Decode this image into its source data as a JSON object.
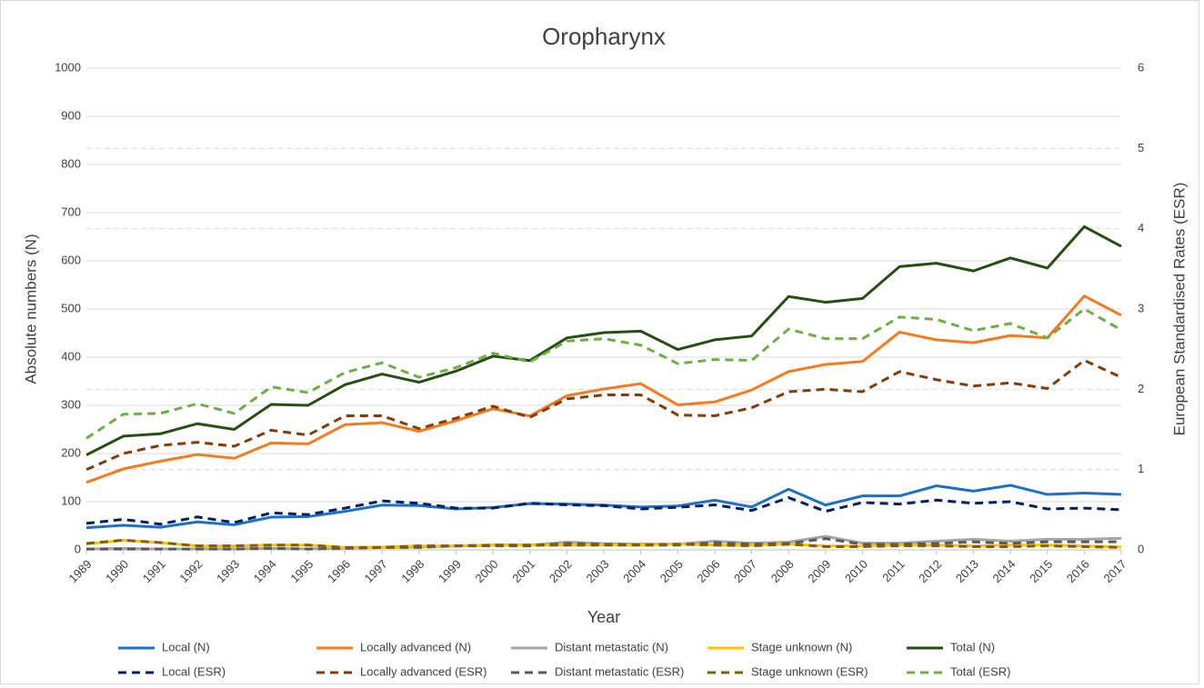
{
  "chart_data": {
    "type": "line",
    "title": "Oropharynx",
    "x_label": "Year",
    "y_label": "Absolute numbers (N)",
    "y2_label": "European Standardised Rates (ESR)",
    "categories": [
      "1989",
      "1990",
      "1991",
      "1992",
      "1993",
      "1994",
      "1995",
      "1996",
      "1997",
      "1998",
      "1999",
      "2000",
      "2001",
      "2002",
      "2003",
      "2004",
      "2005",
      "2006",
      "2007",
      "2008",
      "2009",
      "2010",
      "2011",
      "2012",
      "2013",
      "2014",
      "2015",
      "2016",
      "2017"
    ],
    "ylim": [
      0,
      1000
    ],
    "yticks": [
      0,
      100,
      200,
      300,
      400,
      500,
      600,
      700,
      800,
      900,
      1000
    ],
    "y2lim": [
      0,
      6
    ],
    "y2ticks": [
      0,
      1,
      2,
      3,
      4,
      5,
      6
    ],
    "grid": true,
    "legend": "bottom",
    "series": [
      {
        "name": "Local (N)",
        "color": "#1f6fc5",
        "linestyle": "solid",
        "values": [
          46,
          51,
          47,
          58,
          52,
          68,
          69,
          80,
          93,
          92,
          85,
          88,
          96,
          95,
          93,
          89,
          91,
          103,
          89,
          126,
          93,
          112,
          112,
          133,
          122,
          134,
          115,
          118,
          115
        ]
      },
      {
        "name": "Locally advanced (N)",
        "color": "#f47b20",
        "linestyle": "solid",
        "values": [
          140,
          168,
          184,
          198,
          190,
          222,
          220,
          260,
          264,
          246,
          268,
          293,
          278,
          320,
          334,
          345,
          301,
          307,
          332,
          370,
          385,
          391,
          452,
          436,
          430,
          445,
          440,
          527,
          487
        ]
      },
      {
        "name": "Distant metastatic (N)",
        "color": "#a5a5a5",
        "linestyle": "solid",
        "values": [
          2,
          3,
          2,
          2,
          2,
          3,
          2,
          4,
          5,
          6,
          8,
          10,
          10,
          16,
          13,
          12,
          12,
          18,
          14,
          16,
          28,
          14,
          14,
          18,
          22,
          18,
          22,
          22,
          24
        ]
      },
      {
        "name": "Stage unknown (N)",
        "color": "#ffc000",
        "linestyle": "solid",
        "values": [
          12,
          20,
          15,
          8,
          8,
          10,
          10,
          5,
          6,
          8,
          8,
          10,
          10,
          10,
          10,
          10,
          12,
          10,
          10,
          12,
          8,
          8,
          10,
          10,
          8,
          10,
          10,
          8,
          6
        ]
      },
      {
        "name": "Total (N)",
        "color": "#274e13",
        "linestyle": "solid",
        "values": [
          197,
          236,
          241,
          262,
          250,
          302,
          300,
          343,
          365,
          348,
          371,
          402,
          393,
          440,
          451,
          454,
          416,
          436,
          444,
          526,
          514,
          522,
          588,
          595,
          579,
          606,
          585,
          671,
          630
        ]
      },
      {
        "name": "Local (ESR)",
        "color": "#002060",
        "linestyle": "dashed",
        "axis": "y2",
        "values": [
          0.33,
          0.38,
          0.32,
          0.41,
          0.34,
          0.46,
          0.44,
          0.52,
          0.61,
          0.58,
          0.52,
          0.52,
          0.58,
          0.56,
          0.55,
          0.51,
          0.53,
          0.56,
          0.49,
          0.65,
          0.48,
          0.59,
          0.57,
          0.62,
          0.58,
          0.6,
          0.51,
          0.52,
          0.5
        ]
      },
      {
        "name": "Locally advanced (ESR)",
        "color": "#843c0c",
        "linestyle": "dashed",
        "axis": "y2",
        "values": [
          1.0,
          1.2,
          1.3,
          1.34,
          1.29,
          1.49,
          1.43,
          1.67,
          1.67,
          1.51,
          1.64,
          1.79,
          1.65,
          1.88,
          1.93,
          1.93,
          1.68,
          1.67,
          1.77,
          1.97,
          2.0,
          1.97,
          2.22,
          2.12,
          2.04,
          2.08,
          2.01,
          2.36,
          2.15
        ]
      },
      {
        "name": "Distant metastatic (ESR)",
        "color": "#595959",
        "linestyle": "dashed",
        "axis": "y2",
        "values": [
          0.01,
          0.01,
          0.01,
          0.01,
          0.01,
          0.02,
          0.01,
          0.02,
          0.03,
          0.03,
          0.05,
          0.05,
          0.05,
          0.08,
          0.07,
          0.06,
          0.06,
          0.09,
          0.07,
          0.08,
          0.14,
          0.07,
          0.07,
          0.08,
          0.1,
          0.08,
          0.1,
          0.1,
          0.1
        ]
      },
      {
        "name": "Stage unknown (ESR)",
        "color": "#7f6000",
        "linestyle": "dashed",
        "axis": "y2",
        "values": [
          0.08,
          0.12,
          0.09,
          0.05,
          0.05,
          0.06,
          0.06,
          0.03,
          0.03,
          0.05,
          0.05,
          0.06,
          0.06,
          0.06,
          0.06,
          0.06,
          0.07,
          0.06,
          0.05,
          0.07,
          0.04,
          0.04,
          0.05,
          0.05,
          0.04,
          0.04,
          0.05,
          0.04,
          0.03
        ]
      },
      {
        "name": "Total (ESR)",
        "color": "#70ad47",
        "linestyle": "dashed",
        "axis": "y2",
        "values": [
          1.39,
          1.69,
          1.7,
          1.82,
          1.7,
          2.03,
          1.96,
          2.21,
          2.33,
          2.15,
          2.27,
          2.45,
          2.34,
          2.6,
          2.63,
          2.55,
          2.32,
          2.37,
          2.36,
          2.75,
          2.63,
          2.63,
          2.9,
          2.87,
          2.73,
          2.82,
          2.64,
          3.0,
          2.74
        ]
      }
    ]
  }
}
